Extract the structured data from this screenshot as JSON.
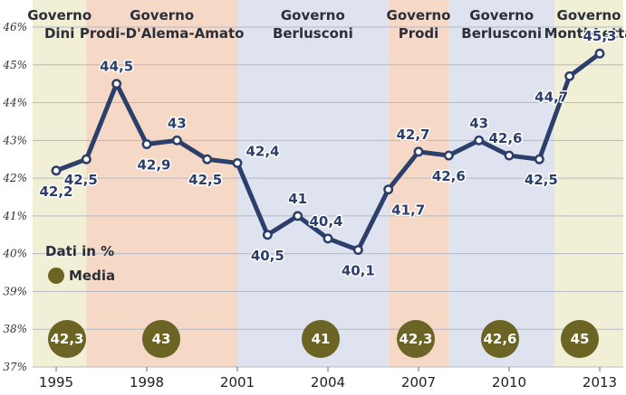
{
  "chart_data": {
    "type": "line",
    "x": [
      1995,
      1996,
      1997,
      1998,
      1999,
      2000,
      2001,
      2002,
      2003,
      2004,
      2005,
      2006,
      2007,
      2008,
      2009,
      2010,
      2011,
      2012,
      2013
    ],
    "series": [
      {
        "values": [
          42.2,
          42.5,
          44.5,
          42.9,
          43,
          42.5,
          42.4,
          40.5,
          41,
          40.4,
          40.1,
          41.7,
          42.7,
          42.6,
          43,
          42.6,
          42.5,
          44.7,
          45.3
        ]
      }
    ],
    "data_labels": [
      "42,2",
      "42,5",
      "44,5",
      "42,9",
      "43",
      "42,5",
      "42,4",
      "40,5",
      "41",
      "40,4",
      "40,1",
      "41,7",
      "42,7",
      "42,6",
      "43",
      "42,6",
      "42,5",
      "44,7",
      "45,3"
    ],
    "y_ticks": [
      "37%",
      "38%",
      "39%",
      "40%",
      "41%",
      "42%",
      "43%",
      "44%",
      "45%",
      "46%"
    ],
    "x_ticks": [
      "1995",
      "1998",
      "2001",
      "2004",
      "2007",
      "2010",
      "2013"
    ],
    "ylim": [
      37,
      46
    ],
    "xlim": [
      1995,
      2013
    ],
    "governments": [
      {
        "line1": "Governo",
        "line2": "Dini",
        "start": 1995,
        "end": 1996,
        "color": "#f1efd6",
        "average": "42,3"
      },
      {
        "line1": "Governo",
        "line2": "Prodi-D'Alema-Amato",
        "start": 1996,
        "end": 2001,
        "color": "#f6d8c6",
        "average": "43"
      },
      {
        "line1": "Governo",
        "line2": "Berlusconi",
        "start": 2001,
        "end": 2006,
        "color": "#dfe3f0",
        "average": "41"
      },
      {
        "line1": "Governo",
        "line2": "Prodi",
        "start": 2006,
        "end": 2008,
        "color": "#f6d8c6",
        "average": "42,3"
      },
      {
        "line1": "Governo",
        "line2": "Berlusconi",
        "start": 2008,
        "end": 2011.5,
        "color": "#dfe3f0",
        "average": "42,6"
      },
      {
        "line1": "Governo",
        "line2": "Monti-Letta",
        "start": 2011.5,
        "end": 2013.5,
        "color": "#f1efd6",
        "average": "45"
      }
    ],
    "legend": {
      "title": "Dati in %",
      "item": "Media",
      "placement": "bottom-left"
    },
    "colors": {
      "line": "#2c3f6b",
      "average_circle": "#6b6424",
      "grid": "#b5b9c4"
    },
    "grid": true
  }
}
